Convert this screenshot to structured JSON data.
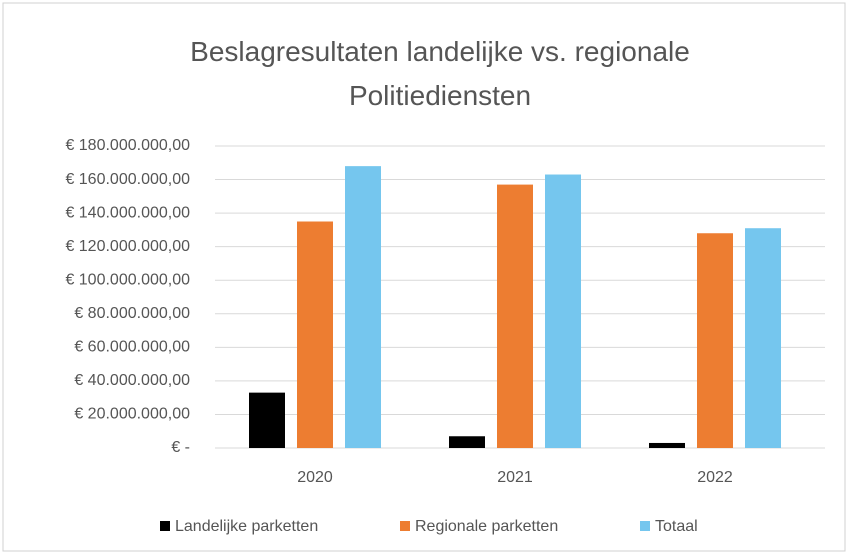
{
  "chart_data": {
    "type": "bar",
    "title": "Beslagresultaten landelijke vs. regionale Politiediensten",
    "categories": [
      "2020",
      "2021",
      "2022"
    ],
    "series": [
      {
        "name": "Landelijke parketten",
        "color": "#000000",
        "values": [
          33000000,
          7000000,
          3000000
        ]
      },
      {
        "name": "Regionale parketten",
        "color": "#ed7d31",
        "values": [
          135000000,
          157000000,
          128000000
        ]
      },
      {
        "name": "Totaal",
        "color": "#75c6ee",
        "values": [
          168000000,
          163000000,
          131000000
        ]
      }
    ],
    "ylim": [
      0,
      180000000
    ],
    "yticks": [
      {
        "value": 0,
        "label": "€ -"
      },
      {
        "value": 20000000,
        "label": "€ 20.000.000,00"
      },
      {
        "value": 40000000,
        "label": "€ 40.000.000,00"
      },
      {
        "value": 60000000,
        "label": "€ 60.000.000,00"
      },
      {
        "value": 80000000,
        "label": "€ 80.000.000,00"
      },
      {
        "value": 100000000,
        "label": "€ 100.000.000,00"
      },
      {
        "value": 120000000,
        "label": "€ 120.000.000,00"
      },
      {
        "value": 140000000,
        "label": "€ 140.000.000,00"
      },
      {
        "value": 160000000,
        "label": "€ 160.000.000,00"
      },
      {
        "value": 180000000,
        "label": "€ 180.000.000,00"
      }
    ],
    "grid": true,
    "legend": "bottom"
  }
}
